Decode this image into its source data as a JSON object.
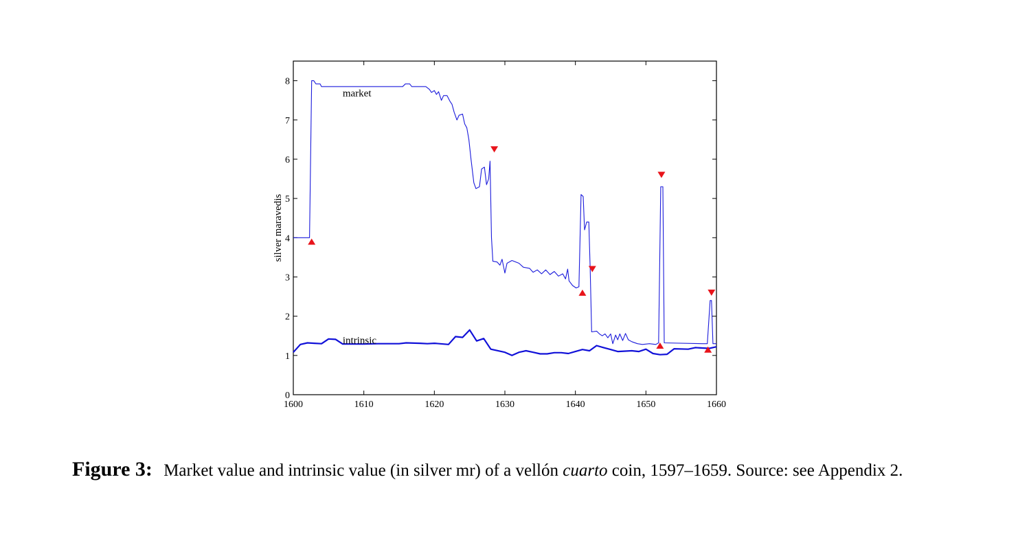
{
  "chart_data": {
    "type": "line",
    "ylabel": "silver maravedis",
    "xlabel": "",
    "xlim": [
      1600,
      1660
    ],
    "ylim": [
      0,
      8.5
    ],
    "x_ticks": [
      1600,
      1610,
      1620,
      1630,
      1640,
      1650,
      1660
    ],
    "y_ticks": [
      0,
      1,
      2,
      3,
      4,
      5,
      6,
      7,
      8
    ],
    "grid": false,
    "series": [
      {
        "name": "market",
        "color": "#1a1adb",
        "points": [
          [
            1600,
            4.0
          ],
          [
            1602.3,
            4.0
          ],
          [
            1602.6,
            8.0
          ],
          [
            1602.9,
            8.0
          ],
          [
            1603.2,
            7.92
          ],
          [
            1603.8,
            7.92
          ],
          [
            1604,
            7.85
          ],
          [
            1615.5,
            7.85
          ],
          [
            1615.9,
            7.92
          ],
          [
            1616.5,
            7.92
          ],
          [
            1616.8,
            7.85
          ],
          [
            1618.8,
            7.85
          ],
          [
            1619.3,
            7.78
          ],
          [
            1619.6,
            7.7
          ],
          [
            1620,
            7.75
          ],
          [
            1620.3,
            7.65
          ],
          [
            1620.6,
            7.72
          ],
          [
            1621,
            7.5
          ],
          [
            1621.3,
            7.62
          ],
          [
            1621.8,
            7.62
          ],
          [
            1622.2,
            7.48
          ],
          [
            1622.5,
            7.4
          ],
          [
            1622.8,
            7.2
          ],
          [
            1623.2,
            7.0
          ],
          [
            1623.5,
            7.12
          ],
          [
            1624,
            7.15
          ],
          [
            1624.3,
            6.9
          ],
          [
            1624.6,
            6.8
          ],
          [
            1624.9,
            6.5
          ],
          [
            1625.2,
            6.0
          ],
          [
            1625.6,
            5.4
          ],
          [
            1625.9,
            5.25
          ],
          [
            1626.4,
            5.3
          ],
          [
            1626.7,
            5.75
          ],
          [
            1627.1,
            5.8
          ],
          [
            1627.4,
            5.35
          ],
          [
            1627.7,
            5.5
          ],
          [
            1627.9,
            5.95
          ],
          [
            1628.1,
            4.0
          ],
          [
            1628.3,
            3.4
          ],
          [
            1628.9,
            3.38
          ],
          [
            1629.3,
            3.3
          ],
          [
            1629.6,
            3.45
          ],
          [
            1630,
            3.1
          ],
          [
            1630.3,
            3.35
          ],
          [
            1631,
            3.42
          ],
          [
            1632,
            3.35
          ],
          [
            1632.6,
            3.25
          ],
          [
            1633.5,
            3.22
          ],
          [
            1634,
            3.12
          ],
          [
            1634.6,
            3.18
          ],
          [
            1635.2,
            3.08
          ],
          [
            1635.8,
            3.18
          ],
          [
            1636.4,
            3.06
          ],
          [
            1637,
            3.14
          ],
          [
            1637.6,
            3.02
          ],
          [
            1638.2,
            3.08
          ],
          [
            1638.6,
            2.95
          ],
          [
            1638.9,
            3.2
          ],
          [
            1639.1,
            2.9
          ],
          [
            1639.6,
            2.78
          ],
          [
            1640.1,
            2.72
          ],
          [
            1640.5,
            2.75
          ],
          [
            1640.8,
            5.1
          ],
          [
            1641.1,
            5.05
          ],
          [
            1641.3,
            4.2
          ],
          [
            1641.6,
            4.4
          ],
          [
            1641.9,
            4.4
          ],
          [
            1642.1,
            3.2
          ],
          [
            1642.3,
            1.6
          ],
          [
            1643,
            1.62
          ],
          [
            1643.4,
            1.55
          ],
          [
            1643.8,
            1.5
          ],
          [
            1644.2,
            1.55
          ],
          [
            1644.6,
            1.45
          ],
          [
            1645,
            1.55
          ],
          [
            1645.3,
            1.3
          ],
          [
            1645.7,
            1.52
          ],
          [
            1646,
            1.4
          ],
          [
            1646.3,
            1.55
          ],
          [
            1646.7,
            1.38
          ],
          [
            1647.1,
            1.56
          ],
          [
            1647.5,
            1.4
          ],
          [
            1648,
            1.35
          ],
          [
            1648.8,
            1.3
          ],
          [
            1649.5,
            1.28
          ],
          [
            1650.5,
            1.3
          ],
          [
            1651.4,
            1.28
          ],
          [
            1651.8,
            1.32
          ],
          [
            1652.1,
            5.3
          ],
          [
            1652.4,
            5.3
          ],
          [
            1652.6,
            1.32
          ],
          [
            1658,
            1.3
          ],
          [
            1658.7,
            1.3
          ],
          [
            1659.1,
            2.4
          ],
          [
            1659.3,
            2.4
          ],
          [
            1659.5,
            1.3
          ],
          [
            1660,
            1.3
          ]
        ]
      },
      {
        "name": "intrinsic",
        "color": "#1010d8",
        "points": [
          [
            1600,
            1.08
          ],
          [
            1601,
            1.28
          ],
          [
            1602,
            1.32
          ],
          [
            1603,
            1.31
          ],
          [
            1604,
            1.3
          ],
          [
            1605,
            1.42
          ],
          [
            1606,
            1.41
          ],
          [
            1607,
            1.29
          ],
          [
            1610,
            1.29
          ],
          [
            1612,
            1.3
          ],
          [
            1615,
            1.3
          ],
          [
            1616,
            1.32
          ],
          [
            1618,
            1.31
          ],
          [
            1619,
            1.3
          ],
          [
            1620,
            1.31
          ],
          [
            1622,
            1.28
          ],
          [
            1623,
            1.48
          ],
          [
            1624,
            1.46
          ],
          [
            1625,
            1.65
          ],
          [
            1626,
            1.37
          ],
          [
            1627,
            1.43
          ],
          [
            1628,
            1.16
          ],
          [
            1630,
            1.08
          ],
          [
            1631,
            1.0
          ],
          [
            1632,
            1.08
          ],
          [
            1633,
            1.12
          ],
          [
            1634,
            1.08
          ],
          [
            1635,
            1.04
          ],
          [
            1636,
            1.04
          ],
          [
            1637,
            1.07
          ],
          [
            1638,
            1.07
          ],
          [
            1639,
            1.05
          ],
          [
            1640,
            1.1
          ],
          [
            1641,
            1.15
          ],
          [
            1642,
            1.12
          ],
          [
            1643,
            1.25
          ],
          [
            1644,
            1.2
          ],
          [
            1645,
            1.15
          ],
          [
            1646,
            1.1
          ],
          [
            1648,
            1.12
          ],
          [
            1649,
            1.1
          ],
          [
            1650,
            1.16
          ],
          [
            1651,
            1.05
          ],
          [
            1652,
            1.02
          ],
          [
            1653,
            1.03
          ],
          [
            1654,
            1.17
          ],
          [
            1656,
            1.16
          ],
          [
            1657,
            1.2
          ],
          [
            1658,
            1.19
          ],
          [
            1659,
            1.18
          ],
          [
            1660,
            1.22
          ]
        ]
      }
    ],
    "markers": [
      {
        "type": "up",
        "x": 1602.6,
        "y": 3.9
      },
      {
        "type": "down",
        "x": 1628.5,
        "y": 6.25
      },
      {
        "type": "up",
        "x": 1641.0,
        "y": 2.6
      },
      {
        "type": "down",
        "x": 1642.4,
        "y": 3.2
      },
      {
        "type": "down",
        "x": 1652.2,
        "y": 5.6
      },
      {
        "type": "up",
        "x": 1652.0,
        "y": 1.25
      },
      {
        "type": "up",
        "x": 1658.8,
        "y": 1.15
      },
      {
        "type": "down",
        "x": 1659.3,
        "y": 2.6
      }
    ],
    "marker_color": "#e8141b",
    "annotations": [
      {
        "text": "market",
        "x": 1607.0,
        "y": 7.6
      },
      {
        "text": "intrinsic",
        "x": 1607.0,
        "y": 1.3
      }
    ]
  },
  "caption": {
    "label": "Figure 3:",
    "text_before": "Market value and intrinsic value (in silver mr) of a vellón ",
    "text_italic": "cuarto",
    "text_after": " coin, 1597–1659.  Source: see Appendix 2."
  }
}
